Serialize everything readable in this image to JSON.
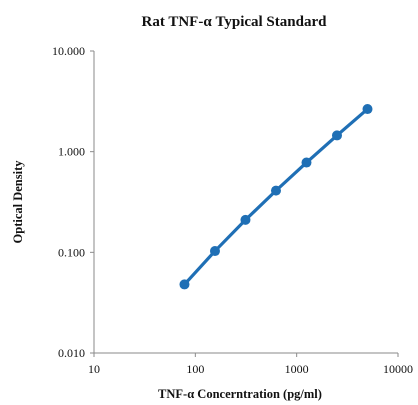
{
  "chart_data": {
    "type": "scatter",
    "title": "Rat TNF-α Typical Standard",
    "xlabel": "TNF-α Concerntration (pg/ml)",
    "ylabel": "Optical Density",
    "x_scale": "log",
    "y_scale": "log",
    "xlim": [
      10,
      10000
    ],
    "ylim": [
      0.01,
      10
    ],
    "x_ticks": [
      "10",
      "100",
      "1000",
      "10000"
    ],
    "y_ticks": [
      "0.010",
      "0.100",
      "1.000",
      "10.000"
    ],
    "x_tick_values": [
      10,
      100,
      1000,
      10000
    ],
    "y_tick_values": [
      0.01,
      0.1,
      1,
      10
    ],
    "grid": false,
    "legend": "none",
    "series": [
      {
        "x": [
          78.125,
          156.25,
          312.5,
          625,
          1250,
          2500,
          5000
        ],
        "y": [
          0.048,
          0.103,
          0.21,
          0.41,
          0.78,
          1.45,
          2.65
        ],
        "color": "#1f6fb5",
        "fit_line": true
      }
    ]
  }
}
